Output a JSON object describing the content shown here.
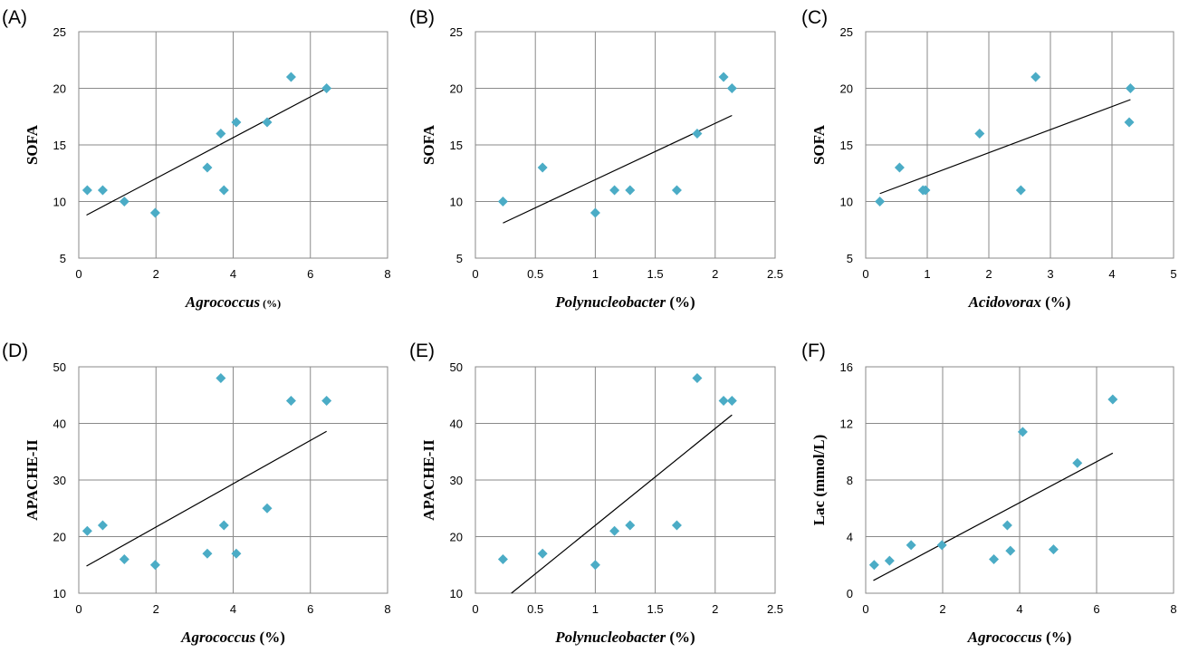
{
  "chart_data": [
    {
      "panel": "(A)",
      "type": "scatter",
      "xlabel": "Agrococcus",
      "xlabel_unit": " (%)",
      "xlabel_unit_small": true,
      "ylabel": "SOFA",
      "xlim": [
        0,
        8
      ],
      "ylim": [
        5,
        25
      ],
      "xticks": [
        "0",
        "2",
        "4",
        "6",
        "8"
      ],
      "yticks": [
        "5",
        "10",
        "15",
        "20",
        "25"
      ],
      "xtick_values": [
        0,
        2,
        4,
        6,
        8
      ],
      "ytick_values": [
        5,
        10,
        15,
        20,
        25
      ],
      "points": [
        [
          0.22,
          11
        ],
        [
          0.62,
          11
        ],
        [
          1.18,
          10
        ],
        [
          1.98,
          9
        ],
        [
          3.33,
          13
        ],
        [
          3.68,
          16
        ],
        [
          3.76,
          11
        ],
        [
          4.08,
          17
        ],
        [
          4.88,
          17
        ],
        [
          5.5,
          21
        ],
        [
          6.42,
          20
        ]
      ],
      "trendline": [
        [
          0.2,
          8.8
        ],
        [
          6.42,
          20
        ]
      ],
      "marker_color": "#4bacc6"
    },
    {
      "panel": "(B)",
      "type": "scatter",
      "xlabel": "Polynucleobacter",
      "xlabel_unit": " (%)",
      "ylabel": "SOFA",
      "xlim": [
        0,
        2.5
      ],
      "ylim": [
        5,
        25
      ],
      "xticks": [
        "0",
        "0.5",
        "1",
        "1.5",
        "2",
        "2.5"
      ],
      "yticks": [
        "5",
        "10",
        "15",
        "20",
        "25"
      ],
      "xtick_values": [
        0,
        0.5,
        1,
        1.5,
        2,
        2.5
      ],
      "ytick_values": [
        5,
        10,
        15,
        20,
        25
      ],
      "points": [
        [
          0.23,
          10
        ],
        [
          0.56,
          13
        ],
        [
          1.0,
          9
        ],
        [
          1.16,
          11
        ],
        [
          1.29,
          11
        ],
        [
          1.68,
          11
        ],
        [
          1.85,
          16
        ],
        [
          2.07,
          21
        ],
        [
          2.14,
          20
        ]
      ],
      "trendline": [
        [
          0.23,
          8.1
        ],
        [
          2.14,
          17.6
        ]
      ],
      "marker_color": "#4bacc6"
    },
    {
      "panel": "(C)",
      "type": "scatter",
      "xlabel": "Acidovorax",
      "xlabel_unit": " (%)",
      "ylabel": "SOFA",
      "xlim": [
        0,
        5
      ],
      "ylim": [
        5,
        25
      ],
      "xticks": [
        "0",
        "1",
        "2",
        "3",
        "4",
        "5"
      ],
      "yticks": [
        "5",
        "10",
        "15",
        "20",
        "25"
      ],
      "xtick_values": [
        0,
        1,
        2,
        3,
        4,
        5
      ],
      "ytick_values": [
        5,
        10,
        15,
        20,
        25
      ],
      "points": [
        [
          0.23,
          10
        ],
        [
          0.55,
          13
        ],
        [
          0.93,
          11
        ],
        [
          0.97,
          11
        ],
        [
          1.85,
          16
        ],
        [
          2.52,
          11
        ],
        [
          2.76,
          21
        ],
        [
          4.28,
          17
        ],
        [
          4.3,
          20
        ]
      ],
      "trendline": [
        [
          0.23,
          10.7
        ],
        [
          4.3,
          19
        ]
      ],
      "marker_color": "#4bacc6"
    },
    {
      "panel": "(D)",
      "type": "scatter",
      "xlabel": "Agrococcus",
      "xlabel_unit": " (%)",
      "ylabel": "APACHE-II",
      "xlim": [
        0,
        8
      ],
      "ylim": [
        10,
        50
      ],
      "xticks": [
        "0",
        "2",
        "4",
        "6",
        "8"
      ],
      "yticks": [
        "10",
        "20",
        "30",
        "40",
        "50"
      ],
      "xtick_values": [
        0,
        2,
        4,
        6,
        8
      ],
      "ytick_values": [
        10,
        20,
        30,
        40,
        50
      ],
      "points": [
        [
          0.22,
          21
        ],
        [
          0.62,
          22
        ],
        [
          1.18,
          16
        ],
        [
          1.98,
          15
        ],
        [
          3.33,
          17
        ],
        [
          3.68,
          48
        ],
        [
          3.76,
          22
        ],
        [
          4.08,
          17
        ],
        [
          4.88,
          25
        ],
        [
          5.5,
          44
        ],
        [
          6.42,
          44
        ]
      ],
      "trendline": [
        [
          0.2,
          14.8
        ],
        [
          6.42,
          38.6
        ]
      ],
      "marker_color": "#4bacc6"
    },
    {
      "panel": "(E)",
      "type": "scatter",
      "xlabel": "Polynucleobacter",
      "xlabel_unit": " (%)",
      "ylabel": "APACHE-II",
      "xlim": [
        0,
        2.5
      ],
      "ylim": [
        10,
        50
      ],
      "xticks": [
        "0",
        "0.5",
        "1",
        "1.5",
        "2",
        "2.5"
      ],
      "yticks": [
        "10",
        "20",
        "30",
        "40",
        "50"
      ],
      "xtick_values": [
        0,
        0.5,
        1,
        1.5,
        2,
        2.5
      ],
      "ytick_values": [
        10,
        20,
        30,
        40,
        50
      ],
      "points": [
        [
          0.23,
          16
        ],
        [
          0.56,
          17
        ],
        [
          1.0,
          15
        ],
        [
          1.16,
          21
        ],
        [
          1.29,
          22
        ],
        [
          1.68,
          22
        ],
        [
          1.85,
          48
        ],
        [
          2.07,
          44
        ],
        [
          2.14,
          44
        ]
      ],
      "trendline": [
        [
          0.3,
          10
        ],
        [
          2.14,
          41.5
        ]
      ],
      "marker_color": "#4bacc6"
    },
    {
      "panel": "(F)",
      "type": "scatter",
      "xlabel": "Agrococcus",
      "xlabel_unit": " (%)",
      "ylabel": "Lac (mmol/L)",
      "xlim": [
        0,
        8
      ],
      "ylim": [
        0,
        16
      ],
      "xticks": [
        "0",
        "2",
        "4",
        "6",
        "8"
      ],
      "yticks": [
        "0",
        "4",
        "8",
        "12",
        "16"
      ],
      "xtick_values": [
        0,
        2,
        4,
        6,
        8
      ],
      "ytick_values": [
        0,
        4,
        8,
        12,
        16
      ],
      "points": [
        [
          0.22,
          2.0
        ],
        [
          0.62,
          2.3
        ],
        [
          1.18,
          3.4
        ],
        [
          1.98,
          3.4
        ],
        [
          3.33,
          2.4
        ],
        [
          3.68,
          4.8
        ],
        [
          3.76,
          3.0
        ],
        [
          4.08,
          11.4
        ],
        [
          4.88,
          3.1
        ],
        [
          5.5,
          9.2
        ],
        [
          6.42,
          13.7
        ]
      ],
      "trendline": [
        [
          0.2,
          0.9
        ],
        [
          6.42,
          9.9
        ]
      ],
      "marker_color": "#4bacc6"
    }
  ]
}
